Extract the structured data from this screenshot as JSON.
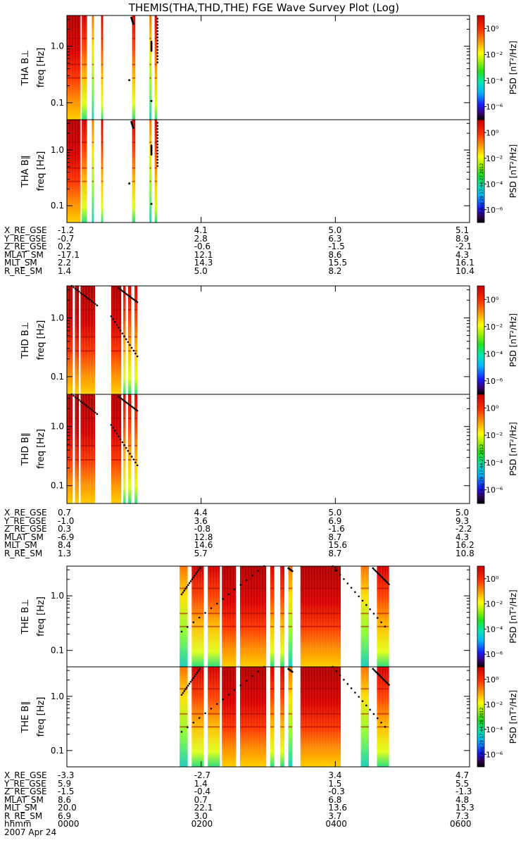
{
  "title": "THEMIS(THA,THD,THE) FGE Wave Survey Plot (Log)",
  "colorbar": {
    "label": "PSD [nT²/Hz]",
    "ticks": [
      "10⁰",
      "10⁻²",
      "10⁻⁴",
      "10⁻⁶"
    ],
    "tick_values": [
      0,
      -2,
      -4,
      -6
    ]
  },
  "freq_ticks": [
    "1.0",
    "0.1"
  ],
  "probes": [
    {
      "id": "THA",
      "panels": [
        "THA B⊥",
        "THA B∥"
      ],
      "freq_label": "freq [Hz]",
      "stamp": "Wed Aug 29 17:44:27 2012",
      "ephemeris": {
        "labels": [
          "X_RE_GSE",
          "Y_RE_GSE",
          "Z_RE_GSE",
          "MLAT_SM",
          "MLT_SM",
          "R_RE_SM"
        ],
        "columns": [
          [
            "-1.2",
            "-0.7",
            "0.2",
            "-17.1",
            "2.2",
            "1.4"
          ],
          [
            "4.1",
            "2.8",
            "-0.6",
            "12.1",
            "14.3",
            "5.0"
          ],
          [
            "5.0",
            "6.3",
            "-1.5",
            "8.6",
            "15.5",
            "8.2"
          ],
          [
            "5.1",
            "8.9",
            "-2.1",
            "4.3",
            "16.1",
            "10.4"
          ]
        ]
      },
      "bands": [
        [
          0.0,
          0.034,
          "dense"
        ],
        [
          0.037,
          0.05,
          "med"
        ],
        [
          0.062,
          0.067,
          "sparse"
        ],
        [
          0.085,
          0.09,
          "med"
        ],
        [
          0.162,
          0.17,
          "med"
        ],
        [
          0.205,
          0.21,
          "sparse"
        ],
        [
          0.218,
          0.224,
          "med"
        ]
      ],
      "tracks": [
        [
          0.16,
          0.98,
          0.165,
          0.92
        ],
        [
          0.225,
          0.97,
          0.225,
          0.55
        ],
        [
          0.21,
          0.75,
          0.21,
          0.66
        ],
        [
          0.155,
          0.38,
          0.155,
          0.38
        ],
        [
          0.21,
          0.18,
          0.21,
          0.18
        ]
      ]
    },
    {
      "id": "THD",
      "panels": [
        "THD B⊥",
        "THD B∥"
      ],
      "freq_label": "freq [Hz]",
      "stamp": "Wed Aug 29 17:44:27 2012",
      "ephemeris": {
        "labels": [
          "X_RE_GSE",
          "Y_RE_GSE",
          "Z_RE_GSE",
          "MLAT_SM",
          "MLT_SM",
          "R_RE_SM"
        ],
        "columns": [
          [
            "0.7",
            "-1.0",
            "0.3",
            "-6.9",
            "8.4",
            "1.3"
          ],
          [
            "4.4",
            "3.6",
            "-0.8",
            "12.8",
            "14.6",
            "5.7"
          ],
          [
            "5.0",
            "6.9",
            "-1.6",
            "8.7",
            "15.6",
            "8.7"
          ],
          [
            "5.0",
            "9.3",
            "-2.2",
            "4.3",
            "16.2",
            "10.8"
          ]
        ]
      },
      "bands": [
        [
          0.0,
          0.014,
          "dense"
        ],
        [
          0.02,
          0.03,
          "dense"
        ],
        [
          0.034,
          0.07,
          "dense"
        ],
        [
          0.11,
          0.135,
          "dense"
        ],
        [
          0.14,
          0.146,
          "med"
        ],
        [
          0.152,
          0.16,
          "med"
        ],
        [
          0.168,
          0.175,
          "med"
        ]
      ],
      "tracks": [
        [
          0.012,
          1.0,
          0.075,
          0.82
        ],
        [
          0.11,
          0.72,
          0.175,
          0.35
        ],
        [
          0.128,
          0.98,
          0.175,
          0.85
        ]
      ]
    },
    {
      "id": "THE",
      "panels": [
        "THE B⊥",
        "THE B∥"
      ],
      "freq_label": "freq [Hz]",
      "stamp": "Wed Aug 29 17:44:28 2012",
      "ephemeris": {
        "labels": [
          "X_RE_GSE",
          "Y_RE_GSE",
          "Z_RE_GSE",
          "MLAT_SM",
          "MLT_SM",
          "R_RE_SM"
        ],
        "columns": [
          [
            "-3.3",
            "5.9",
            "-1.5",
            "8.6",
            "20.0",
            "6.9"
          ],
          [
            "-2.7",
            "1.4",
            "-0.4",
            "0.7",
            "22.1",
            "3.0"
          ],
          [
            "3.4",
            "1.5",
            "-0.3",
            "6.8",
            "13.6",
            "3.7"
          ],
          [
            "4.7",
            "5.5",
            "-1.3",
            "4.8",
            "15.3",
            "7.3"
          ]
        ]
      },
      "bands": [
        [
          0.28,
          0.3,
          "sparse"
        ],
        [
          0.31,
          0.34,
          "med"
        ],
        [
          0.35,
          0.38,
          "med"
        ],
        [
          0.385,
          0.42,
          "dense"
        ],
        [
          0.43,
          0.495,
          "dense"
        ],
        [
          0.505,
          0.515,
          "med"
        ],
        [
          0.53,
          0.54,
          "med"
        ],
        [
          0.55,
          0.56,
          "sparse"
        ],
        [
          0.58,
          0.68,
          "dense"
        ],
        [
          0.73,
          0.75,
          "sparse"
        ],
        [
          0.77,
          0.8,
          "med"
        ]
      ],
      "tracks": [
        [
          0.285,
          0.72,
          0.33,
          0.98
        ],
        [
          0.285,
          0.35,
          0.49,
          1.0
        ],
        [
          0.55,
          0.98,
          0.56,
          0.95
        ],
        [
          0.66,
          1.0,
          0.79,
          0.4
        ],
        [
          0.76,
          0.98,
          0.8,
          0.82
        ]
      ]
    }
  ],
  "time_axis": {
    "label": "hhmm",
    "date": "2007 Apr 24",
    "ticks": [
      "0000",
      "0200",
      "0400",
      "0600"
    ]
  }
}
